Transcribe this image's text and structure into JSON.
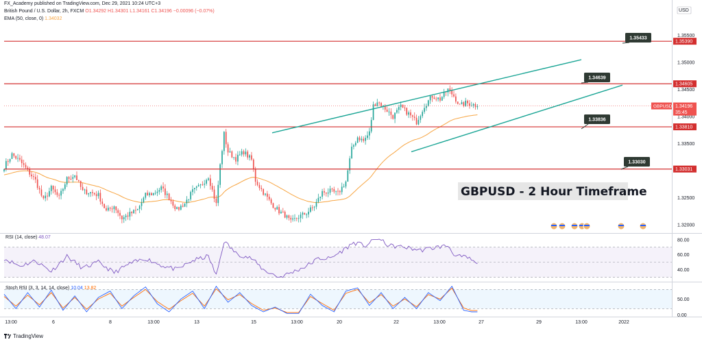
{
  "header": {
    "publisher": "FX_Academy published on TradingView.com, Dec 29, 2021 10:24 UTC+3",
    "symbol_line": "British Pound / U.S. Dollar, 2h, FXCM",
    "o": "O1.34292",
    "h": "H1.34301",
    "l": "L1.34161",
    "c": "C1.34196",
    "chg": "−0.00096 (−0.07%)",
    "ema_label": "EMA (50, close, 0)",
    "ema_value": "1.34032"
  },
  "currency": "USD",
  "watermark": "GBPUSD - 2  Hour Timeframe",
  "footer": {
    "brand": "TradingView"
  },
  "colors": {
    "up": "#26a69a",
    "down": "#ef5350",
    "ema": "#f7a440",
    "level": "#d32f2f",
    "channel": "#1aa595",
    "callout": "#2f3a33",
    "rsi": "#7e57c2",
    "stoch_k": "#2962ff",
    "stoch_d": "#ff6d00"
  },
  "chart_data": [
    {
      "type": "candlestick",
      "title": "British Pound / U.S. Dollar, 2h, FXCM",
      "y_ticks": [
        "1.35500",
        "1.35000",
        "1.34500",
        "1.34000",
        "1.33500",
        "1.33000",
        "1.32500",
        "1.32000"
      ],
      "y_range": [
        1.3185,
        1.3605
      ],
      "x_ticks": [
        "13:00",
        "6",
        "8",
        "13:00",
        "13",
        "15",
        "13:00",
        "20",
        "22",
        "13:00",
        "27",
        "29",
        "13:00",
        "2022"
      ],
      "horizontal_levels": [
        1.3539,
        1.34605,
        1.3381,
        1.33031
      ],
      "level_labels": [
        "1.35390",
        "1.34605",
        "1.33810",
        "1.33031"
      ],
      "current_price": {
        "symbol": "GBPUSD",
        "value": "1.34196",
        "countdown": "35:45"
      },
      "callouts": [
        "1.35433",
        "1.34639",
        "1.33836",
        "1.33030"
      ],
      "indicators": [
        {
          "name": "EMA (50, close, 0)",
          "last": 1.34032
        }
      ],
      "channel": {
        "upper": [
          1.337,
          1.3505
        ],
        "lower": [
          1.3335,
          1.3458
        ]
      },
      "close_path": [
        [
          0,
          1.3308
        ],
        [
          4,
          1.333
        ],
        [
          8,
          1.3318
        ],
        [
          12,
          1.33
        ],
        [
          16,
          1.3282
        ],
        [
          20,
          1.3245
        ],
        [
          24,
          1.3268
        ],
        [
          28,
          1.325
        ],
        [
          32,
          1.3285
        ],
        [
          36,
          1.3292
        ],
        [
          40,
          1.3262
        ],
        [
          44,
          1.326
        ],
        [
          48,
          1.3255
        ],
        [
          52,
          1.3225
        ],
        [
          56,
          1.3235
        ],
        [
          60,
          1.3212
        ],
        [
          64,
          1.322
        ],
        [
          68,
          1.3228
        ],
        [
          72,
          1.3255
        ],
        [
          76,
          1.3258
        ],
        [
          80,
          1.3268
        ],
        [
          84,
          1.325
        ],
        [
          88,
          1.3228
        ],
        [
          92,
          1.324
        ],
        [
          96,
          1.3262
        ],
        [
          100,
          1.3272
        ],
        [
          104,
          1.329
        ],
        [
          108,
          1.3238
        ],
        [
          110,
          1.331
        ],
        [
          112,
          1.3368
        ],
        [
          114,
          1.3335
        ],
        [
          118,
          1.3322
        ],
        [
          122,
          1.3335
        ],
        [
          126,
          1.332
        ],
        [
          128,
          1.3282
        ],
        [
          132,
          1.326
        ],
        [
          136,
          1.324
        ],
        [
          140,
          1.3225
        ],
        [
          143,
          1.3218
        ],
        [
          146,
          1.3205
        ],
        [
          150,
          1.3215
        ],
        [
          154,
          1.3222
        ],
        [
          158,
          1.3235
        ],
        [
          162,
          1.326
        ],
        [
          166,
          1.3262
        ],
        [
          170,
          1.3258
        ],
        [
          174,
          1.328
        ],
        [
          177,
          1.334
        ],
        [
          180,
          1.3362
        ],
        [
          183,
          1.3355
        ],
        [
          186,
          1.337
        ],
        [
          188,
          1.342
        ],
        [
          190,
          1.3428
        ],
        [
          194,
          1.3415
        ],
        [
          198,
          1.34
        ],
        [
          202,
          1.3418
        ],
        [
          206,
          1.3405
        ],
        [
          210,
          1.339
        ],
        [
          214,
          1.342
        ],
        [
          218,
          1.3438
        ],
        [
          222,
          1.3432
        ],
        [
          226,
          1.345
        ],
        [
          229,
          1.3438
        ],
        [
          232,
          1.342
        ],
        [
          235,
          1.3425
        ],
        [
          238,
          1.3423
        ],
        [
          241,
          1.34196
        ]
      ]
    },
    {
      "type": "line",
      "title": "RSI (14, close)",
      "last_value": "48.07",
      "y_ticks": [
        "80.00",
        "60.00",
        "40.00"
      ],
      "y_range": [
        25,
        88
      ],
      "bands": [
        70,
        50,
        30
      ],
      "path": [
        [
          0,
          55
        ],
        [
          8,
          45
        ],
        [
          16,
          52
        ],
        [
          24,
          38
        ],
        [
          32,
          58
        ],
        [
          40,
          42
        ],
        [
          48,
          50
        ],
        [
          56,
          36
        ],
        [
          64,
          48
        ],
        [
          72,
          55
        ],
        [
          80,
          46
        ],
        [
          88,
          40
        ],
        [
          96,
          52
        ],
        [
          104,
          58
        ],
        [
          108,
          32
        ],
        [
          112,
          78
        ],
        [
          118,
          62
        ],
        [
          126,
          55
        ],
        [
          132,
          40
        ],
        [
          140,
          30
        ],
        [
          146,
          36
        ],
        [
          154,
          45
        ],
        [
          160,
          55
        ],
        [
          166,
          55
        ],
        [
          172,
          65
        ],
        [
          178,
          76
        ],
        [
          184,
          72
        ],
        [
          190,
          82
        ],
        [
          196,
          72
        ],
        [
          204,
          70
        ],
        [
          212,
          66
        ],
        [
          220,
          70
        ],
        [
          226,
          72
        ],
        [
          230,
          58
        ],
        [
          236,
          56
        ],
        [
          241,
          48
        ]
      ]
    },
    {
      "type": "line",
      "title": "Stoch RSI (3, 3, 14, 14, close)",
      "values": [
        "10.04",
        "13.82"
      ],
      "y_ticks": [
        "50.00",
        "0.00"
      ],
      "y_range": [
        -5,
        100
      ],
      "bands": [
        80,
        20
      ],
      "series": [
        {
          "name": "",
          "path": [
            [
              0,
              65
            ],
            [
              6,
              20
            ],
            [
              12,
              70
            ],
            [
              18,
              25
            ],
            [
              24,
              78
            ],
            [
              30,
              15
            ],
            [
              36,
              60
            ],
            [
              42,
              10
            ],
            [
              48,
              55
            ],
            [
              54,
              75
            ],
            [
              60,
              20
            ],
            [
              66,
              60
            ],
            [
              72,
              88
            ],
            [
              78,
              35
            ],
            [
              84,
              10
            ],
            [
              90,
              50
            ],
            [
              96,
              75
            ],
            [
              102,
              20
            ],
            [
              108,
              90
            ],
            [
              114,
              40
            ],
            [
              120,
              70
            ],
            [
              126,
              30
            ],
            [
              132,
              10
            ],
            [
              138,
              25
            ],
            [
              144,
              5
            ],
            [
              150,
              5
            ],
            [
              156,
              65
            ],
            [
              162,
              30
            ],
            [
              168,
              10
            ],
            [
              174,
              75
            ],
            [
              180,
              85
            ],
            [
              186,
              30
            ],
            [
              192,
              70
            ],
            [
              198,
              20
            ],
            [
              204,
              55
            ],
            [
              210,
              20
            ],
            [
              216,
              70
            ],
            [
              222,
              45
            ],
            [
              228,
              90
            ],
            [
              234,
              15
            ],
            [
              238,
              10
            ],
            [
              241,
              10
            ]
          ]
        },
        {
          "name": "",
          "path": [
            [
              0,
              58
            ],
            [
              6,
              28
            ],
            [
              12,
              62
            ],
            [
              18,
              32
            ],
            [
              24,
              70
            ],
            [
              30,
              22
            ],
            [
              36,
              55
            ],
            [
              42,
              18
            ],
            [
              48,
              50
            ],
            [
              54,
              68
            ],
            [
              60,
              28
            ],
            [
              66,
              55
            ],
            [
              72,
              80
            ],
            [
              78,
              42
            ],
            [
              84,
              18
            ],
            [
              90,
              45
            ],
            [
              96,
              68
            ],
            [
              102,
              28
            ],
            [
              108,
              82
            ],
            [
              114,
              48
            ],
            [
              120,
              64
            ],
            [
              126,
              36
            ],
            [
              132,
              15
            ],
            [
              138,
              22
            ],
            [
              144,
              8
            ],
            [
              150,
              8
            ],
            [
              156,
              58
            ],
            [
              162,
              36
            ],
            [
              168,
              15
            ],
            [
              174,
              68
            ],
            [
              180,
              80
            ],
            [
              186,
              38
            ],
            [
              192,
              64
            ],
            [
              198,
              28
            ],
            [
              204,
              50
            ],
            [
              210,
              26
            ],
            [
              216,
              64
            ],
            [
              222,
              50
            ],
            [
              228,
              84
            ],
            [
              234,
              22
            ],
            [
              238,
              14
            ],
            [
              241,
              14
            ]
          ]
        }
      ]
    }
  ]
}
